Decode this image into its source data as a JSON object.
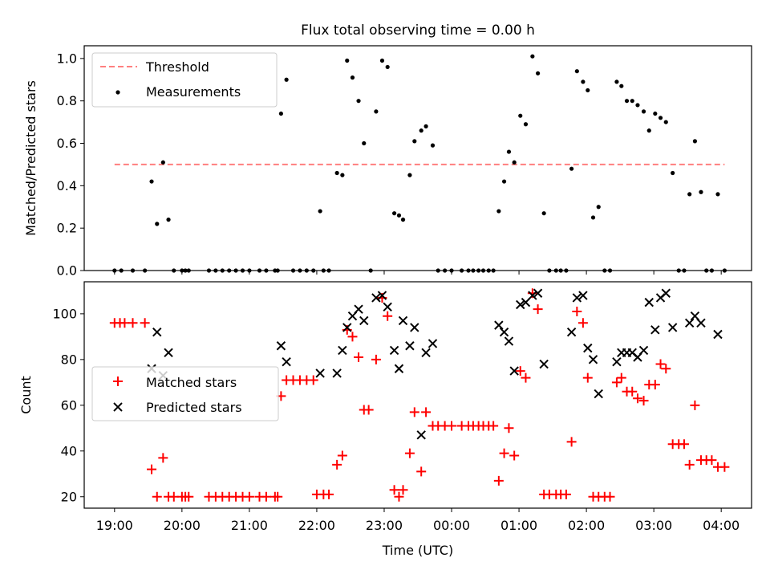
{
  "chart_data": [
    {
      "type": "scatter",
      "title": "Flux total observing time = 0.00 h",
      "ylabel": "Matched/Predicted stars",
      "xlabel": "",
      "xlim": [
        -0.45,
        9.45
      ],
      "ylim": [
        0,
        1.06
      ],
      "yticks": [
        0.0,
        0.2,
        0.4,
        0.6,
        0.8,
        1.0
      ],
      "ytick_labels": [
        "0.0",
        "0.2",
        "0.4",
        "0.6",
        "0.8",
        "1.0"
      ],
      "grid": false,
      "legend": "upper-left",
      "threshold": {
        "name": "Threshold",
        "value": 0.5,
        "x": [
          0.0,
          9.05
        ],
        "color": "#ff7f7f",
        "style": "dashed"
      },
      "series": [
        {
          "name": "Measurements",
          "color": "#000000",
          "points": [
            [
              0.0,
              0.0
            ],
            [
              0.1,
              0.0
            ],
            [
              0.27,
              0.0
            ],
            [
              0.45,
              0.0
            ],
            [
              0.55,
              0.42
            ],
            [
              0.63,
              0.22
            ],
            [
              0.72,
              0.51
            ],
            [
              0.8,
              0.24
            ],
            [
              0.88,
              0.0
            ],
            [
              1.0,
              0.0
            ],
            [
              1.05,
              0.0
            ],
            [
              1.1,
              0.0
            ],
            [
              1.4,
              0.0
            ],
            [
              1.5,
              0.0
            ],
            [
              1.6,
              0.0
            ],
            [
              1.7,
              0.0
            ],
            [
              1.8,
              0.0
            ],
            [
              1.9,
              0.0
            ],
            [
              2.0,
              0.0
            ],
            [
              2.15,
              0.0
            ],
            [
              2.25,
              0.0
            ],
            [
              2.38,
              0.0
            ],
            [
              2.42,
              0.0
            ],
            [
              2.47,
              0.74
            ],
            [
              2.55,
              0.9
            ],
            [
              2.65,
              0.0
            ],
            [
              2.75,
              0.0
            ],
            [
              2.85,
              0.0
            ],
            [
              2.95,
              0.0
            ],
            [
              3.05,
              0.28
            ],
            [
              3.1,
              0.0
            ],
            [
              3.18,
              0.0
            ],
            [
              3.3,
              0.46
            ],
            [
              3.38,
              0.45
            ],
            [
              3.45,
              0.99
            ],
            [
              3.53,
              0.91
            ],
            [
              3.62,
              0.8
            ],
            [
              3.7,
              0.6
            ],
            [
              3.8,
              0.0
            ],
            [
              3.88,
              0.75
            ],
            [
              3.97,
              0.99
            ],
            [
              4.05,
              0.96
            ],
            [
              4.15,
              0.27
            ],
            [
              4.22,
              0.26
            ],
            [
              4.28,
              0.24
            ],
            [
              4.38,
              0.45
            ],
            [
              4.45,
              0.61
            ],
            [
              4.55,
              0.66
            ],
            [
              4.62,
              0.68
            ],
            [
              4.72,
              0.59
            ],
            [
              4.8,
              0.0
            ],
            [
              4.9,
              0.0
            ],
            [
              5.0,
              0.0
            ],
            [
              5.15,
              0.0
            ],
            [
              5.25,
              0.0
            ],
            [
              5.32,
              0.0
            ],
            [
              5.4,
              0.0
            ],
            [
              5.47,
              0.0
            ],
            [
              5.55,
              0.0
            ],
            [
              5.62,
              0.0
            ],
            [
              5.7,
              0.28
            ],
            [
              5.78,
              0.42
            ],
            [
              5.85,
              0.56
            ],
            [
              5.93,
              0.51
            ],
            [
              6.02,
              0.73
            ],
            [
              6.1,
              0.69
            ],
            [
              6.2,
              1.01
            ],
            [
              6.28,
              0.93
            ],
            [
              6.37,
              0.27
            ],
            [
              6.45,
              0.0
            ],
            [
              6.55,
              0.0
            ],
            [
              6.62,
              0.0
            ],
            [
              6.7,
              0.0
            ],
            [
              6.78,
              0.48
            ],
            [
              6.86,
              0.94
            ],
            [
              6.95,
              0.89
            ],
            [
              7.02,
              0.85
            ],
            [
              7.1,
              0.25
            ],
            [
              7.18,
              0.3
            ],
            [
              7.27,
              0.0
            ],
            [
              7.35,
              0.0
            ],
            [
              7.45,
              0.89
            ],
            [
              7.52,
              0.87
            ],
            [
              7.6,
              0.8
            ],
            [
              7.68,
              0.8
            ],
            [
              7.76,
              0.78
            ],
            [
              7.85,
              0.75
            ],
            [
              7.93,
              0.66
            ],
            [
              8.02,
              0.74
            ],
            [
              8.1,
              0.72
            ],
            [
              8.18,
              0.7
            ],
            [
              8.28,
              0.46
            ],
            [
              8.37,
              0.0
            ],
            [
              8.45,
              0.0
            ],
            [
              8.53,
              0.36
            ],
            [
              8.61,
              0.61
            ],
            [
              8.7,
              0.37
            ],
            [
              8.78,
              0.0
            ],
            [
              8.86,
              0.0
            ],
            [
              8.95,
              0.36
            ],
            [
              9.05,
              0.0
            ]
          ]
        }
      ]
    },
    {
      "type": "scatter",
      "title": "",
      "xlabel": "Time (UTC)",
      "ylabel": "Count",
      "xlim": [
        -0.45,
        9.45
      ],
      "ylim": [
        15,
        114
      ],
      "xticks": [
        0,
        1,
        2,
        3,
        4,
        5,
        6,
        7,
        8,
        9
      ],
      "xtick_labels": [
        "19:00",
        "20:00",
        "21:00",
        "22:00",
        "23:00",
        "00:00",
        "01:00",
        "02:00",
        "03:00",
        "04:00"
      ],
      "yticks": [
        20,
        40,
        60,
        80,
        100
      ],
      "ytick_labels": [
        "20",
        "40",
        "60",
        "80",
        "100"
      ],
      "grid": false,
      "legend": "center-left",
      "series": [
        {
          "name": "Matched stars",
          "marker": "plus",
          "color": "#ff0000",
          "points": [
            [
              0.0,
              96
            ],
            [
              0.08,
              96
            ],
            [
              0.15,
              96
            ],
            [
              0.27,
              96
            ],
            [
              0.45,
              96
            ],
            [
              0.55,
              32
            ],
            [
              0.63,
              20
            ],
            [
              0.72,
              37
            ],
            [
              0.8,
              20
            ],
            [
              0.88,
              20
            ],
            [
              1.0,
              20
            ],
            [
              1.05,
              20
            ],
            [
              1.1,
              20
            ],
            [
              1.4,
              20
            ],
            [
              1.5,
              20
            ],
            [
              1.6,
              20
            ],
            [
              1.7,
              20
            ],
            [
              1.8,
              20
            ],
            [
              1.9,
              20
            ],
            [
              2.0,
              20
            ],
            [
              2.15,
              20
            ],
            [
              2.25,
              20
            ],
            [
              2.38,
              20
            ],
            [
              2.42,
              20
            ],
            [
              2.47,
              64
            ],
            [
              2.55,
              71
            ],
            [
              2.65,
              71
            ],
            [
              2.75,
              71
            ],
            [
              2.85,
              71
            ],
            [
              2.95,
              71
            ],
            [
              3.0,
              21
            ],
            [
              3.1,
              21
            ],
            [
              3.18,
              21
            ],
            [
              3.3,
              34
            ],
            [
              3.38,
              38
            ],
            [
              3.45,
              93
            ],
            [
              3.53,
              90
            ],
            [
              3.62,
              81
            ],
            [
              3.7,
              58
            ],
            [
              3.77,
              58
            ],
            [
              3.88,
              80
            ],
            [
              3.97,
              107
            ],
            [
              4.05,
              99
            ],
            [
              4.15,
              23
            ],
            [
              4.22,
              20
            ],
            [
              4.28,
              23
            ],
            [
              4.38,
              39
            ],
            [
              4.45,
              57
            ],
            [
              4.55,
              31
            ],
            [
              4.62,
              57
            ],
            [
              4.72,
              51
            ],
            [
              4.8,
              51
            ],
            [
              4.9,
              51
            ],
            [
              5.0,
              51
            ],
            [
              5.15,
              51
            ],
            [
              5.25,
              51
            ],
            [
              5.32,
              51
            ],
            [
              5.4,
              51
            ],
            [
              5.47,
              51
            ],
            [
              5.55,
              51
            ],
            [
              5.62,
              51
            ],
            [
              5.7,
              27
            ],
            [
              5.78,
              39
            ],
            [
              5.85,
              50
            ],
            [
              5.93,
              38
            ],
            [
              6.02,
              75
            ],
            [
              6.1,
              72
            ],
            [
              6.2,
              109
            ],
            [
              6.28,
              102
            ],
            [
              6.37,
              21
            ],
            [
              6.45,
              21
            ],
            [
              6.55,
              21
            ],
            [
              6.62,
              21
            ],
            [
              6.7,
              21
            ],
            [
              6.78,
              44
            ],
            [
              6.86,
              101
            ],
            [
              6.95,
              96
            ],
            [
              7.02,
              72
            ],
            [
              7.1,
              20
            ],
            [
              7.18,
              20
            ],
            [
              7.27,
              20
            ],
            [
              7.35,
              20
            ],
            [
              7.45,
              70
            ],
            [
              7.52,
              72
            ],
            [
              7.6,
              66
            ],
            [
              7.68,
              66
            ],
            [
              7.76,
              63
            ],
            [
              7.85,
              62
            ],
            [
              7.93,
              69
            ],
            [
              8.02,
              69
            ],
            [
              8.1,
              78
            ],
            [
              8.18,
              76
            ],
            [
              8.28,
              43
            ],
            [
              8.37,
              43
            ],
            [
              8.45,
              43
            ],
            [
              8.53,
              34
            ],
            [
              8.61,
              60
            ],
            [
              8.7,
              36
            ],
            [
              8.78,
              36
            ],
            [
              8.86,
              36
            ],
            [
              8.95,
              33
            ],
            [
              9.05,
              33
            ]
          ]
        },
        {
          "name": "Predicted stars",
          "marker": "x",
          "color": "#000000",
          "points": [
            [
              0.55,
              76
            ],
            [
              0.63,
              92
            ],
            [
              0.72,
              73
            ],
            [
              0.8,
              83
            ],
            [
              2.47,
              86
            ],
            [
              2.55,
              79
            ],
            [
              3.05,
              74
            ],
            [
              3.3,
              74
            ],
            [
              3.38,
              84
            ],
            [
              3.45,
              94
            ],
            [
              3.53,
              99
            ],
            [
              3.62,
              102
            ],
            [
              3.7,
              97
            ],
            [
              3.88,
              107
            ],
            [
              3.97,
              108
            ],
            [
              4.05,
              103
            ],
            [
              4.15,
              84
            ],
            [
              4.22,
              76
            ],
            [
              4.28,
              97
            ],
            [
              4.38,
              86
            ],
            [
              4.45,
              94
            ],
            [
              4.55,
              47
            ],
            [
              4.62,
              83
            ],
            [
              4.72,
              87
            ],
            [
              5.7,
              95
            ],
            [
              5.78,
              92
            ],
            [
              5.85,
              88
            ],
            [
              5.93,
              75
            ],
            [
              6.02,
              104
            ],
            [
              6.1,
              105
            ],
            [
              6.2,
              108
            ],
            [
              6.28,
              109
            ],
            [
              6.37,
              78
            ],
            [
              6.78,
              92
            ],
            [
              6.86,
              107
            ],
            [
              6.95,
              108
            ],
            [
              7.02,
              85
            ],
            [
              7.1,
              80
            ],
            [
              7.18,
              65
            ],
            [
              7.45,
              79
            ],
            [
              7.52,
              83
            ],
            [
              7.6,
              83
            ],
            [
              7.68,
              83
            ],
            [
              7.76,
              81
            ],
            [
              7.85,
              84
            ],
            [
              7.93,
              105
            ],
            [
              8.02,
              93
            ],
            [
              8.1,
              107
            ],
            [
              8.18,
              109
            ],
            [
              8.28,
              94
            ],
            [
              8.53,
              96
            ],
            [
              8.61,
              99
            ],
            [
              8.7,
              96
            ],
            [
              8.95,
              91
            ]
          ]
        }
      ]
    }
  ]
}
